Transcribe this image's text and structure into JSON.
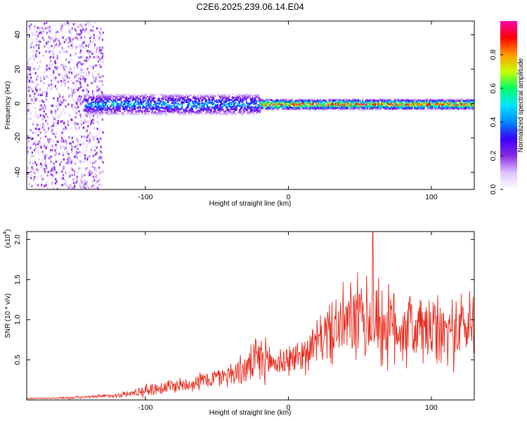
{
  "title": "C2E6.2025.239.06.14.E04",
  "chart_data": [
    {
      "type": "heatmap",
      "title": "C2E6.2025.239.06.14.E04",
      "xlabel": "Height of straight line (km)",
      "ylabel": "Frequency (Hz)",
      "xlim": [
        -183,
        130
      ],
      "ylim": [
        -50,
        48
      ],
      "x_ticks": [
        -100,
        0,
        100
      ],
      "x_tick_labels": [
        "-100",
        "0",
        "100"
      ],
      "y_ticks": [
        -40,
        -20,
        0,
        20,
        40
      ],
      "y_tick_labels": [
        "-40",
        "-20",
        "0",
        "20",
        "40"
      ],
      "colorbar": {
        "label": "Normalized spectral amplitude",
        "range": [
          0,
          1
        ],
        "ticks": [
          0.0,
          0.2,
          0.4,
          0.6,
          0.8
        ],
        "tick_labels": [
          "0.0",
          "0.2",
          "0.4",
          "0.6",
          "0.8"
        ],
        "colors": [
          "#ffffff",
          "#dcc4ff",
          "#8a2be2",
          "#3b00ff",
          "#0088ff",
          "#00e5ff",
          "#00ff66",
          "#c8ff00",
          "#ff9900",
          "#ff0000",
          "#ff00aa"
        ]
      },
      "band_center_hz": 0,
      "band_segments": [
        {
          "x_start": -143,
          "x_end": -20,
          "halfwidth_hz": 6,
          "peak_amplitude": 0.45
        },
        {
          "x_start": -20,
          "x_end": 130,
          "halfwidth_hz": 3,
          "peak_amplitude": 0.95
        }
      ],
      "noise_region": {
        "x_start": -183,
        "x_end": -130,
        "freq_range_hz": [
          -50,
          48
        ],
        "amplitude_range": [
          0.02,
          0.22
        ]
      }
    },
    {
      "type": "line",
      "xlabel": "Height of straight line (km)",
      "ylabel": "SNR (10 * v/v)",
      "y_scale_label": "(x10",
      "y_scale_exponent": "4",
      "xlim": [
        -183,
        130
      ],
      "ylim": [
        0,
        2.1
      ],
      "x_ticks": [
        -100,
        0,
        100
      ],
      "x_tick_labels": [
        "-100",
        "0",
        "100"
      ],
      "y_ticks": [
        0.5,
        1.0,
        1.5,
        2.0
      ],
      "y_tick_labels": [
        "0.5",
        "1.0",
        "1.5",
        "2.0"
      ],
      "series": [
        {
          "name": "SNR",
          "color": "#e8291c",
          "x": [
            -183,
            -170,
            -160,
            -150,
            -140,
            -130,
            -120,
            -110,
            -100,
            -90,
            -80,
            -70,
            -60,
            -50,
            -40,
            -30,
            -25,
            -20,
            -15,
            -10,
            -5,
            0,
            5,
            10,
            15,
            20,
            25,
            30,
            35,
            40,
            45,
            50,
            55,
            60,
            65,
            70,
            75,
            80,
            85,
            90,
            95,
            100,
            105,
            110,
            115,
            120,
            125,
            130
          ],
          "baseline": [
            0.02,
            0.02,
            0.025,
            0.03,
            0.035,
            0.045,
            0.06,
            0.08,
            0.12,
            0.15,
            0.18,
            0.2,
            0.24,
            0.28,
            0.33,
            0.38,
            0.45,
            0.5,
            0.5,
            0.46,
            0.48,
            0.5,
            0.52,
            0.58,
            0.62,
            0.72,
            0.82,
            0.85,
            0.9,
            0.95,
            0.98,
            1.0,
            0.98,
            1.0,
            0.95,
            0.9,
            0.9,
            0.92,
            0.9,
            0.88,
            0.86,
            0.85,
            0.82,
            0.84,
            0.85,
            0.9,
            0.92,
            0.95
          ],
          "spread": [
            0.01,
            0.01,
            0.015,
            0.02,
            0.02,
            0.03,
            0.04,
            0.05,
            0.1,
            0.12,
            0.12,
            0.12,
            0.14,
            0.16,
            0.2,
            0.25,
            0.3,
            0.45,
            0.3,
            0.25,
            0.25,
            0.25,
            0.25,
            0.3,
            0.3,
            0.35,
            0.4,
            0.5,
            0.55,
            0.6,
            0.65,
            0.7,
            0.7,
            0.72,
            0.7,
            0.65,
            0.65,
            0.65,
            0.6,
            0.6,
            0.58,
            0.58,
            0.55,
            0.55,
            0.55,
            0.55,
            0.6,
            0.6
          ],
          "max_value": 2.09,
          "max_at_x": 59
        }
      ]
    }
  ]
}
